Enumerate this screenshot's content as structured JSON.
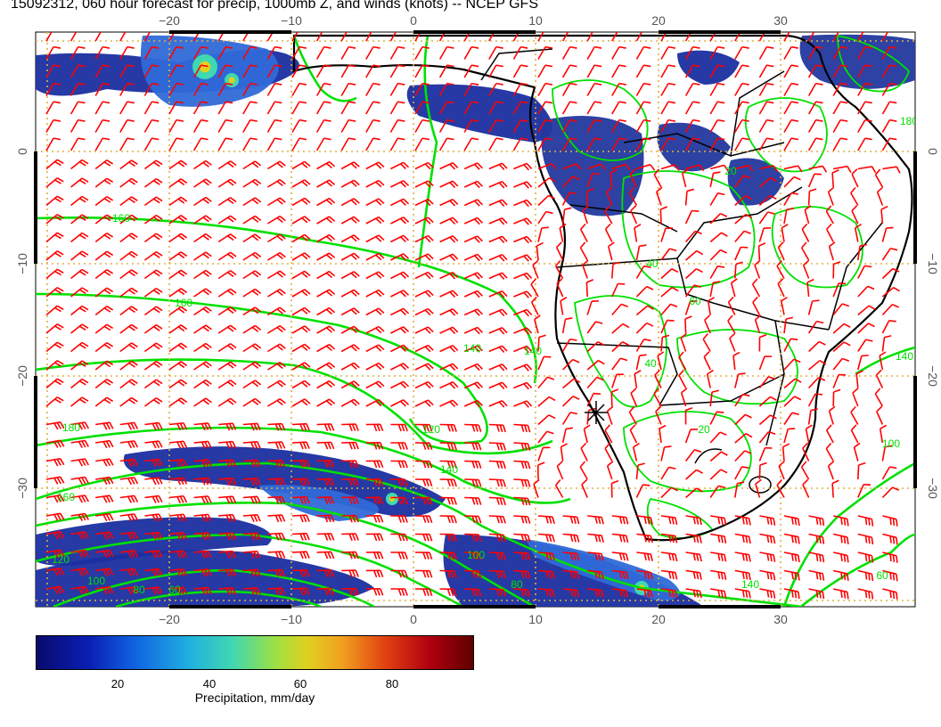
{
  "title": "15092312, 060 hour forecast for precip, 1000mb Z, and winds (knots) -- NCEP GFS",
  "map": {
    "lon_ticks": [
      "−20",
      "−10",
      "0",
      "10",
      "20",
      "30"
    ],
    "lat_ticks": [
      "0",
      "−10",
      "−20",
      "−30"
    ],
    "contour_labels": [
      "160",
      "160",
      "140",
      "140",
      "120",
      "180",
      "160",
      "140",
      "100",
      "80",
      "140",
      "60",
      "20",
      "40",
      "120",
      "100",
      "80",
      "60",
      "140",
      "100",
      "40",
      "20",
      "60",
      "180"
    ],
    "marker": "star-marker",
    "colors": {
      "wind_barbs": "#ff0000",
      "contours": "#00e000",
      "coastline": "#000000",
      "gridlines": "#e0b040"
    }
  },
  "colorbar": {
    "ticks": [
      "20",
      "40",
      "60",
      "80"
    ],
    "label": "Precipitation, mm/day",
    "range": [
      0,
      100
    ]
  }
}
